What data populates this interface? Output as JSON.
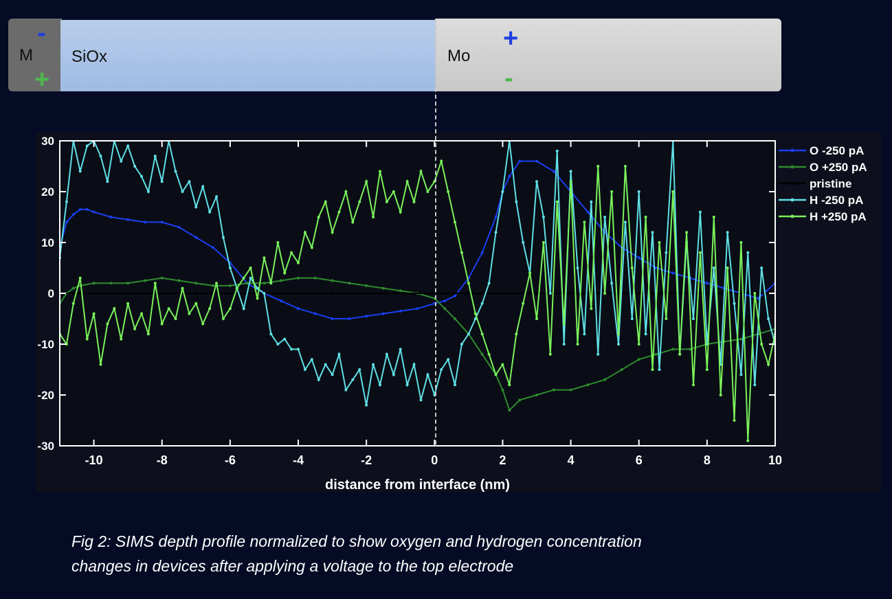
{
  "stack": {
    "layers": [
      {
        "label": "M",
        "color": "#6b6b6b"
      },
      {
        "label": "SiOx",
        "color": "#a9c3e8"
      },
      {
        "label": "Mo",
        "color": "#d2d2d2"
      }
    ],
    "m_top_sign": "-",
    "m_bottom_sign": "+",
    "mo_top_sign": "+",
    "mo_bottom_sign": "-",
    "minus_color": "#1f3fe0",
    "plus_color": "#4db84d"
  },
  "chart_data": {
    "type": "line",
    "title": "",
    "xlabel": "distance from interface (nm)",
    "ylabel": "",
    "xlim": [
      -11,
      10
    ],
    "ylim": [
      -30,
      30
    ],
    "xticks": [
      -10,
      -8,
      -6,
      -4,
      -2,
      0,
      2,
      4,
      6,
      8,
      10
    ],
    "yticks": [
      -30,
      -20,
      -10,
      0,
      10,
      20,
      30
    ],
    "legend_position": "right-outside",
    "grid": false,
    "series": [
      {
        "name": "O -250 pA",
        "color": "#1a3ff0",
        "x": [
          -11,
          -10.8,
          -10.6,
          -10.4,
          -10.2,
          -10,
          -9.5,
          -9,
          -8.5,
          -8,
          -7.5,
          -7,
          -6.5,
          -6,
          -5.5,
          -5,
          -4.5,
          -4,
          -3.5,
          -3,
          -2.5,
          -2,
          -1.5,
          -1,
          -0.5,
          0,
          0.3,
          0.6,
          1,
          1.4,
          1.8,
          2,
          2.2,
          2.5,
          3,
          3.5,
          4,
          4.5,
          5,
          5.5,
          6,
          6.5,
          7,
          7.5,
          8,
          8.5,
          9,
          9.5,
          10
        ],
        "y": [
          9,
          14,
          15.5,
          16.5,
          16.5,
          16,
          15,
          14.5,
          14,
          14,
          13,
          11,
          9,
          6,
          2,
          0,
          -1.5,
          -3,
          -4,
          -5,
          -5,
          -4.5,
          -4,
          -3.5,
          -3,
          -2,
          -1.5,
          -0.5,
          3,
          8,
          15,
          20,
          23,
          26,
          26,
          24,
          20,
          16,
          12,
          9,
          7,
          5,
          4,
          3,
          2,
          1,
          0,
          -1,
          2
        ]
      },
      {
        "name": "O +250 pA",
        "color": "#2e8b2e",
        "x": [
          -11,
          -10.8,
          -10.6,
          -10.4,
          -10,
          -9.5,
          -9,
          -8.5,
          -8,
          -7.5,
          -7,
          -6.5,
          -6,
          -5.5,
          -5,
          -4.5,
          -4,
          -3.5,
          -3,
          -2.5,
          -2,
          -1.5,
          -1,
          -0.5,
          0,
          0.3,
          0.6,
          1,
          1.4,
          1.8,
          2,
          2.2,
          2.5,
          3,
          3.5,
          4,
          4.5,
          5,
          5.5,
          6,
          6.5,
          7,
          7.5,
          8,
          8.5,
          9,
          9.5,
          10
        ],
        "y": [
          -2,
          0,
          1,
          1.5,
          2,
          2,
          2,
          2.5,
          3,
          2.5,
          2,
          1.5,
          1.5,
          2,
          2,
          2.5,
          3,
          3,
          2.5,
          2,
          1.5,
          1,
          0.5,
          0,
          -1,
          -3,
          -5,
          -8,
          -12,
          -16,
          -19,
          -23,
          -21,
          -20,
          -19,
          -19,
          -18,
          -17,
          -15,
          -13,
          -12,
          -11,
          -11,
          -10,
          -9.5,
          -9,
          -8,
          -7
        ]
      },
      {
        "name": "pristine",
        "color": "#000000",
        "x": [
          -11,
          -9,
          -7,
          -5,
          -3,
          -1,
          0,
          1,
          3,
          5,
          7,
          9,
          10
        ],
        "y": [
          0,
          0,
          0,
          0,
          0,
          0,
          0,
          0,
          0,
          0,
          0,
          0,
          0
        ]
      },
      {
        "name": "H -250 pA",
        "color": "#5fe0e6",
        "x": [
          -11,
          -10.8,
          -10.6,
          -10.4,
          -10.2,
          -10,
          -9.8,
          -9.6,
          -9.4,
          -9.2,
          -9,
          -8.8,
          -8.6,
          -8.4,
          -8.2,
          -8,
          -7.8,
          -7.6,
          -7.4,
          -7.2,
          -7,
          -6.8,
          -6.6,
          -6.4,
          -6.2,
          -6,
          -5.8,
          -5.6,
          -5.4,
          -5.2,
          -5,
          -4.8,
          -4.6,
          -4.4,
          -4.2,
          -4,
          -3.8,
          -3.6,
          -3.4,
          -3.2,
          -3,
          -2.8,
          -2.6,
          -2.4,
          -2.2,
          -2,
          -1.8,
          -1.6,
          -1.4,
          -1.2,
          -1,
          -0.8,
          -0.6,
          -0.4,
          -0.2,
          0,
          0.2,
          0.4,
          0.6,
          0.8,
          1,
          1.2,
          1.4,
          1.6,
          1.8,
          2,
          2.2,
          2.4,
          2.6,
          2.8,
          3,
          3.2,
          3.4,
          3.6,
          3.8,
          4,
          4.2,
          4.4,
          4.6,
          4.8,
          5,
          5.2,
          5.4,
          5.6,
          5.8,
          6,
          6.2,
          6.4,
          6.6,
          6.8,
          7,
          7.2,
          7.4,
          7.6,
          7.8,
          8,
          8.2,
          8.4,
          8.6,
          8.8,
          9,
          9.2,
          9.4,
          9.6,
          9.8,
          10
        ],
        "y": [
          7,
          18,
          30,
          24,
          29,
          30,
          27,
          22,
          30,
          26,
          29,
          25,
          23,
          20,
          27,
          22,
          30,
          24,
          20,
          22,
          17,
          21,
          16,
          19,
          11,
          5,
          1,
          -3,
          3,
          1,
          0,
          -8,
          -10,
          -9,
          -11,
          -11,
          -15,
          -13,
          -17,
          -14,
          -16,
          -12,
          -19,
          -17,
          -15,
          -22,
          -14,
          -18,
          -12,
          -16,
          -11,
          -18,
          -14,
          -21,
          -16,
          -20,
          -15,
          -13,
          -18,
          -10,
          -8,
          -5,
          -2,
          2,
          12,
          20,
          30,
          18,
          10,
          4,
          22,
          15,
          0,
          28,
          -10,
          24,
          5,
          -8,
          18,
          -12,
          15,
          2,
          -10,
          14,
          -5,
          20,
          -8,
          12,
          -15,
          8,
          30,
          -12,
          10,
          -5,
          16,
          -10,
          5,
          -14,
          12,
          -2,
          -16,
          8,
          -18,
          5,
          -5,
          -10
        ]
      },
      {
        "name": "H +250 pA",
        "color": "#7af25a",
        "x": [
          -11,
          -10.8,
          -10.6,
          -10.4,
          -10.2,
          -10,
          -9.8,
          -9.6,
          -9.4,
          -9.2,
          -9,
          -8.8,
          -8.6,
          -8.4,
          -8.2,
          -8,
          -7.8,
          -7.6,
          -7.4,
          -7.2,
          -7,
          -6.8,
          -6.6,
          -6.4,
          -6.2,
          -6,
          -5.8,
          -5.6,
          -5.4,
          -5.2,
          -5,
          -4.8,
          -4.6,
          -4.4,
          -4.2,
          -4,
          -3.8,
          -3.6,
          -3.4,
          -3.2,
          -3,
          -2.8,
          -2.6,
          -2.4,
          -2.2,
          -2,
          -1.8,
          -1.6,
          -1.4,
          -1.2,
          -1,
          -0.8,
          -0.6,
          -0.4,
          -0.2,
          0,
          0.2,
          0.4,
          0.6,
          0.8,
          1,
          1.2,
          1.4,
          1.6,
          1.8,
          2,
          2.2,
          2.4,
          2.6,
          2.8,
          3,
          3.2,
          3.4,
          3.6,
          3.8,
          4,
          4.2,
          4.4,
          4.6,
          4.8,
          5,
          5.2,
          5.4,
          5.6,
          5.8,
          6,
          6.2,
          6.4,
          6.6,
          6.8,
          7,
          7.2,
          7.4,
          7.6,
          7.8,
          8,
          8.2,
          8.4,
          8.6,
          8.8,
          9,
          9.2,
          9.4,
          9.6,
          9.8,
          10
        ],
        "y": [
          -8,
          -10,
          -2,
          3,
          -9,
          -4,
          -14,
          -6,
          -3,
          -9,
          -2,
          -7,
          -4,
          -8,
          2,
          -6,
          -3,
          -5,
          1,
          -4,
          -2,
          -6,
          -3,
          2,
          -5,
          -3,
          1,
          3,
          5,
          -1,
          7,
          2,
          10,
          4,
          8,
          6,
          12,
          9,
          15,
          18,
          12,
          16,
          20,
          14,
          18,
          22,
          15,
          24,
          18,
          20,
          16,
          22,
          18,
          24,
          20,
          22,
          26,
          20,
          14,
          8,
          2,
          -4,
          -8,
          -12,
          -16,
          -14,
          -18,
          -8,
          -2,
          4,
          -5,
          10,
          -12,
          18,
          -6,
          22,
          -10,
          14,
          -3,
          25,
          0,
          20,
          -8,
          25,
          5,
          -10,
          15,
          -15,
          10,
          -5,
          20,
          -12,
          12,
          -18,
          8,
          -15,
          15,
          -20,
          5,
          -25,
          10,
          -29,
          0,
          -10,
          -14,
          -8
        ]
      }
    ]
  },
  "caption": {
    "line1": "Fig 2: SIMS depth profile normalized to show oxygen and hydrogen concentration",
    "line2": "changes in devices after applying a voltage to the top electrode"
  }
}
